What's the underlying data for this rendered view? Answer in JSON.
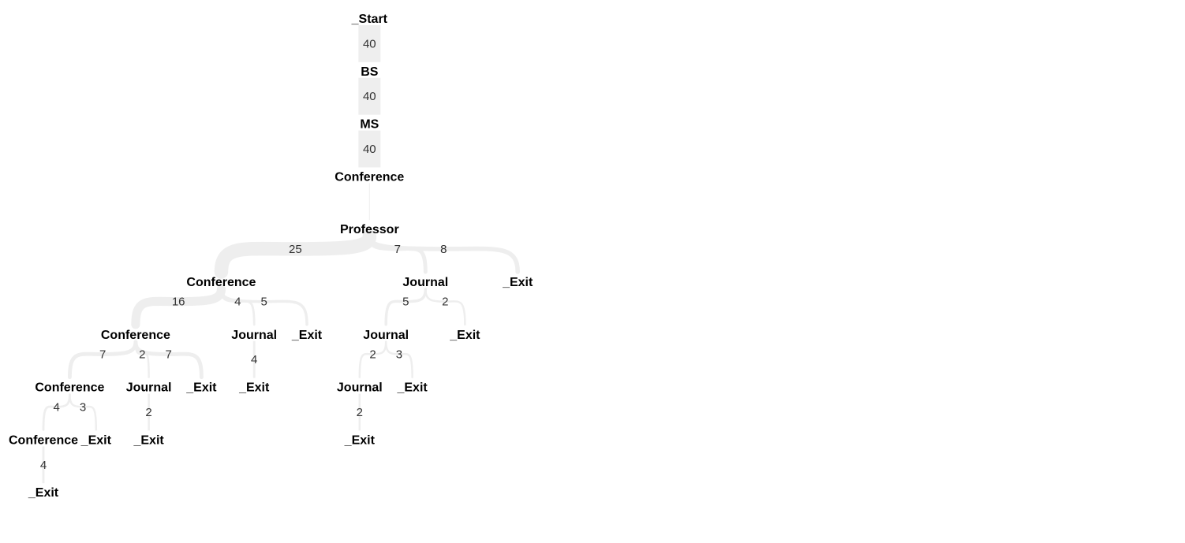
{
  "colors": {
    "link": "#eeeeee",
    "label": "#000000",
    "count": "#333333"
  },
  "tree": {
    "name": "_Start",
    "count": 40,
    "children": [
      {
        "name": "BS",
        "count": 40,
        "children": [
          {
            "name": "MS",
            "count": 40,
            "children": [
              {
                "name": "Conference",
                "count": 40,
                "children": [
                  {
                    "name": "Professor",
                    "children": [
                      {
                        "name": "Conference",
                        "count": 25,
                        "children": [
                          {
                            "name": "Conference",
                            "count": 16,
                            "children": [
                              {
                                "name": "Conference",
                                "count": 7,
                                "children": [
                                  {
                                    "name": "Conference",
                                    "count": 4,
                                    "children": [
                                      {
                                        "name": "_Exit",
                                        "count": 4
                                      }
                                    ]
                                  },
                                  {
                                    "name": "_Exit",
                                    "count": 3
                                  }
                                ]
                              },
                              {
                                "name": "Journal",
                                "count": 2,
                                "children": [
                                  {
                                    "name": "_Exit",
                                    "count": 2
                                  }
                                ]
                              },
                              {
                                "name": "_Exit",
                                "count": 7
                              }
                            ]
                          },
                          {
                            "name": "Journal",
                            "count": 4,
                            "children": [
                              {
                                "name": "_Exit",
                                "count": 4
                              }
                            ]
                          },
                          {
                            "name": "_Exit",
                            "count": 5
                          }
                        ]
                      },
                      {
                        "name": "Journal",
                        "count": 7,
                        "children": [
                          {
                            "name": "Journal",
                            "count": 5,
                            "children": [
                              {
                                "name": "Journal",
                                "count": 2,
                                "children": [
                                  {
                                    "name": "_Exit",
                                    "count": 2
                                  }
                                ]
                              },
                              {
                                "name": "_Exit",
                                "count": 3
                              }
                            ]
                          },
                          {
                            "name": "_Exit",
                            "count": 2
                          }
                        ]
                      },
                      {
                        "name": "_Exit",
                        "count": 8
                      }
                    ]
                  }
                ]
              }
            ]
          }
        ]
      }
    ]
  }
}
